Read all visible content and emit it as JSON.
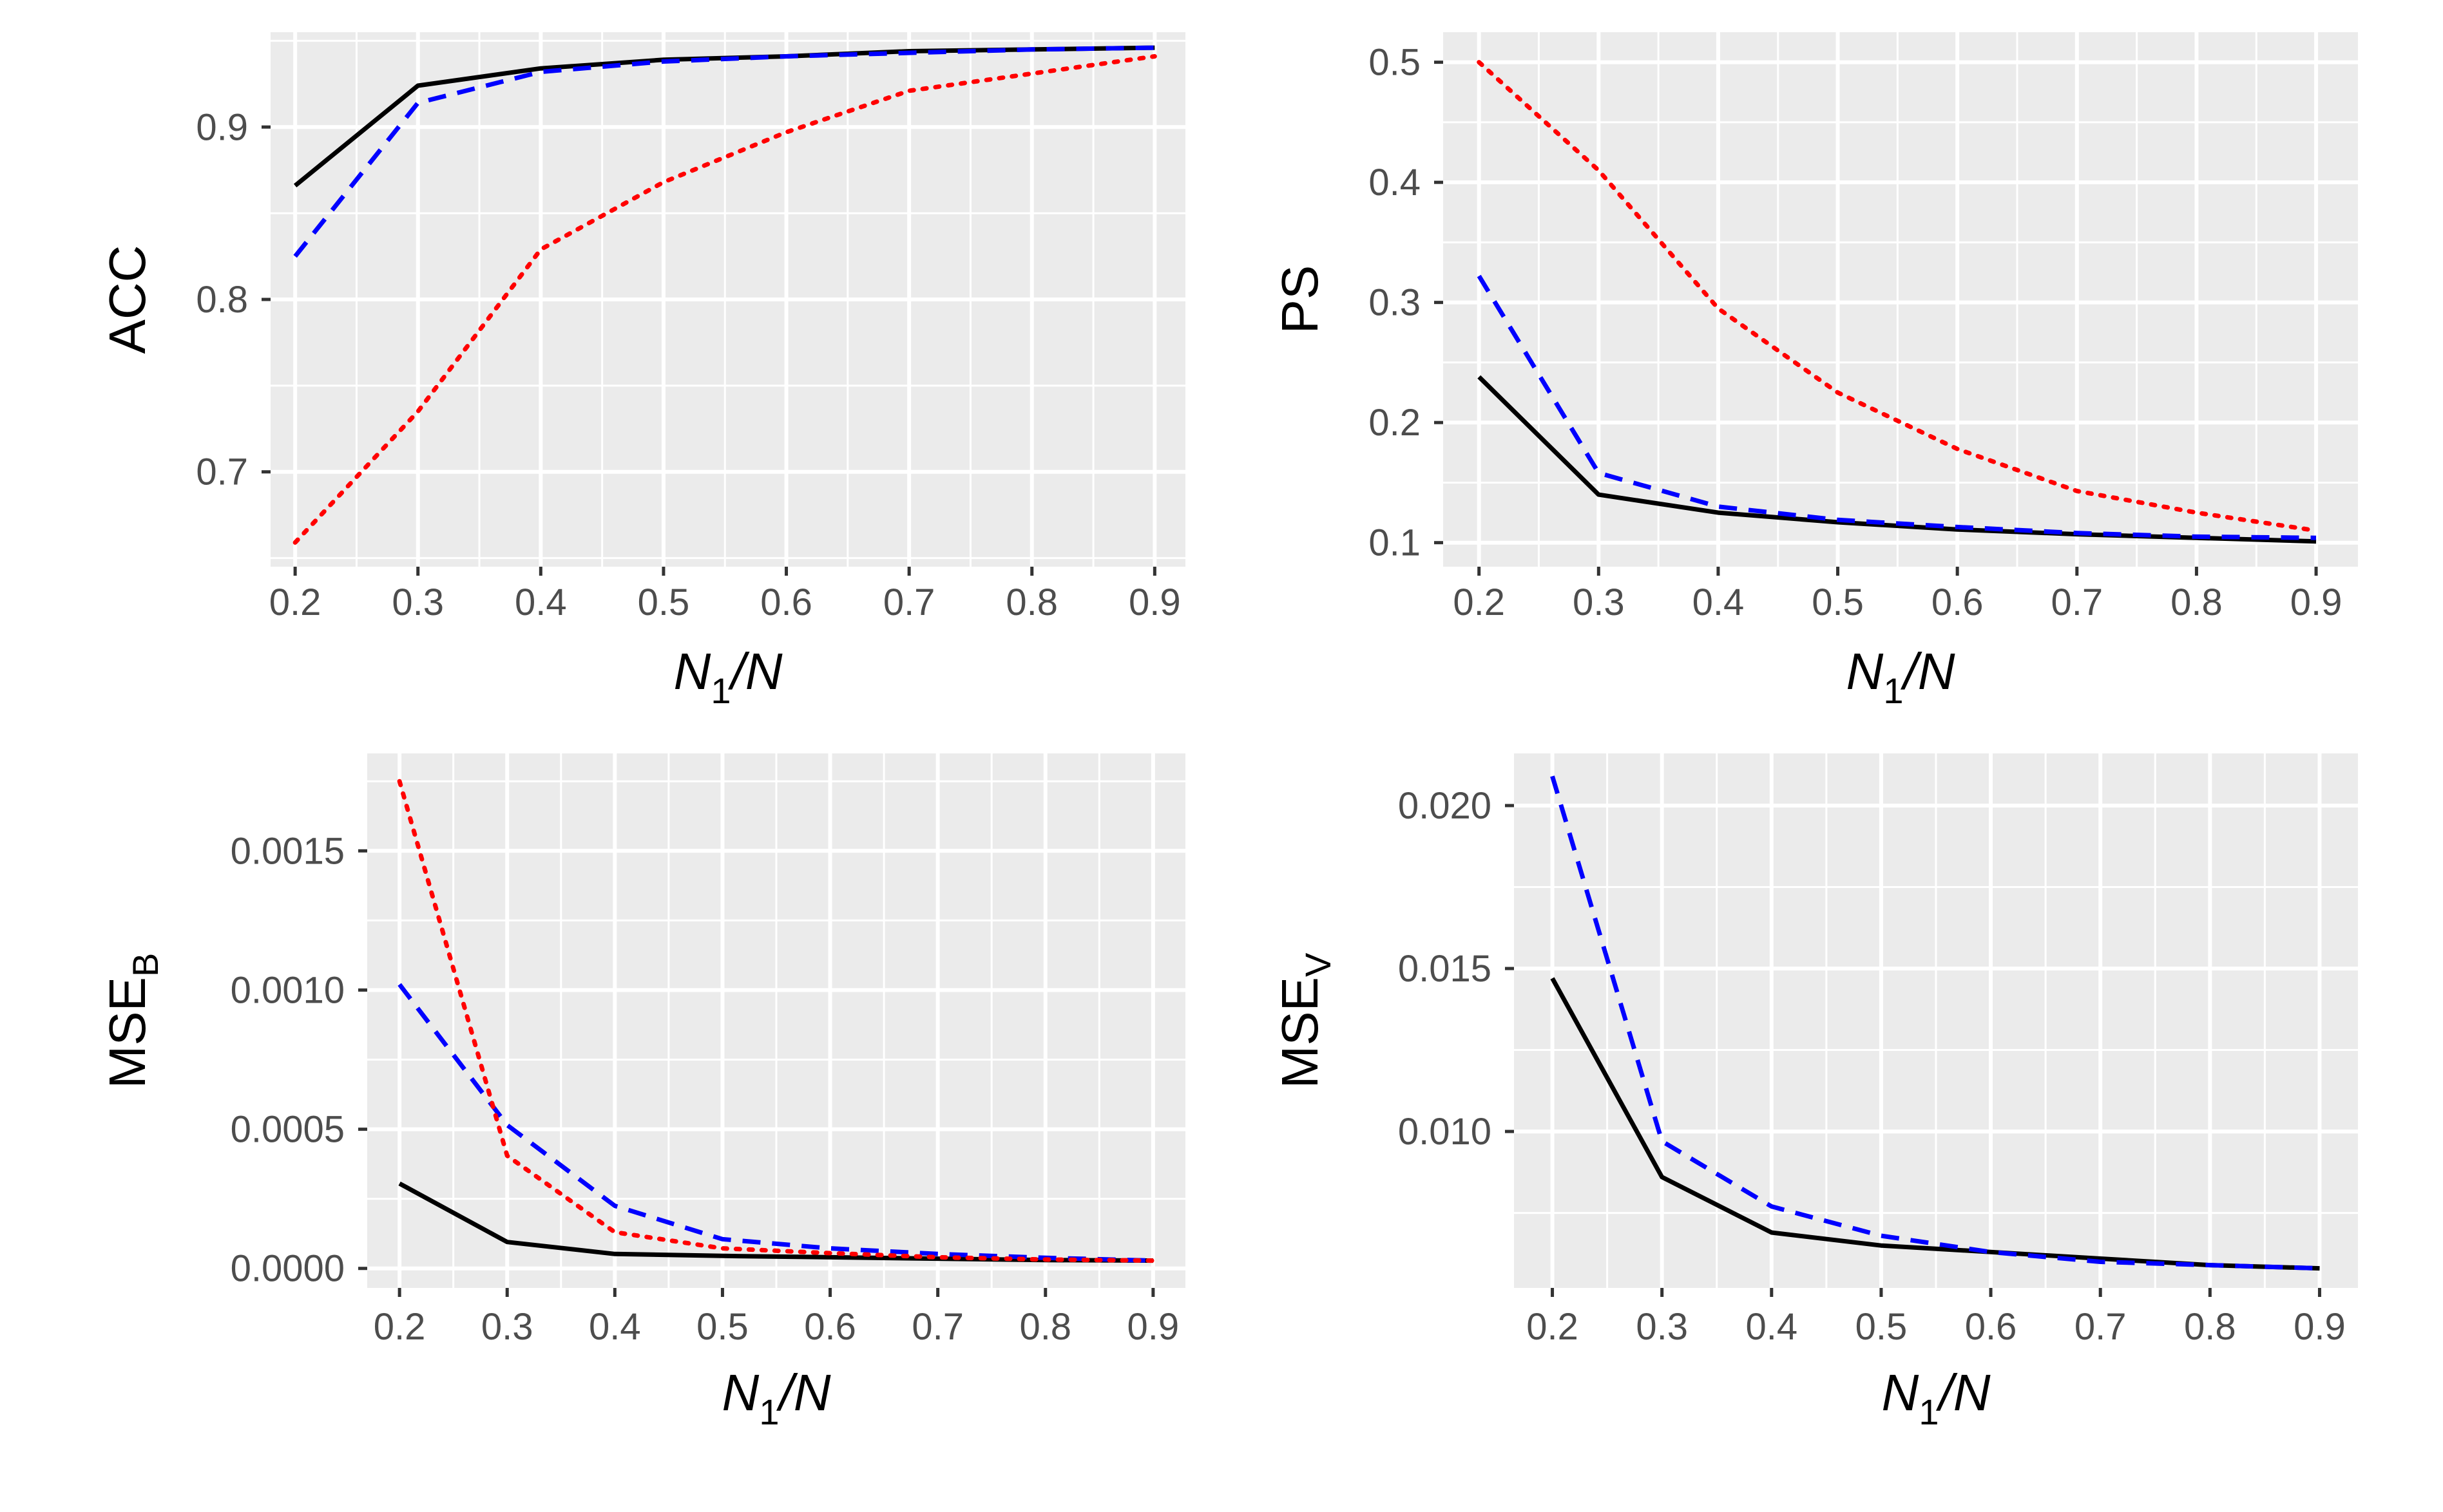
{
  "chart_data": [
    {
      "type": "line",
      "x": [
        0.2,
        0.3,
        0.4,
        0.5,
        0.6,
        0.7,
        0.8,
        0.9
      ],
      "x_ticks": [
        "0.2",
        "0.3",
        "0.4",
        "0.5",
        "0.6",
        "0.7",
        "0.8",
        "0.9"
      ],
      "xlabel": {
        "main": "N",
        "sub": "1",
        "tail": "/N"
      },
      "ylabel": {
        "main": "ACC",
        "sub": ""
      },
      "xlim": [
        0.18,
        0.925
      ],
      "ylim": [
        0.645,
        0.955
      ],
      "y_ticks": [
        0.7,
        0.8,
        0.9
      ],
      "y_tick_labels": [
        "0.7",
        "0.8",
        "0.9"
      ],
      "grid": true,
      "series": [
        {
          "style": "solid",
          "color": "#000000",
          "values": [
            0.866,
            0.924,
            0.934,
            0.939,
            0.941,
            0.944,
            0.945,
            0.946
          ]
        },
        {
          "style": "dashed",
          "color": "#0000ff",
          "values": [
            0.825,
            0.914,
            0.932,
            0.938,
            0.941,
            0.943,
            0.945,
            0.946
          ]
        },
        {
          "style": "dotted",
          "color": "#ff0000",
          "values": [
            0.659,
            0.735,
            0.829,
            0.868,
            0.897,
            0.921,
            0.931,
            0.941
          ]
        }
      ]
    },
    {
      "type": "line",
      "x": [
        0.2,
        0.3,
        0.4,
        0.5,
        0.6,
        0.7,
        0.8,
        0.9
      ],
      "x_ticks": [
        "0.2",
        "0.3",
        "0.4",
        "0.5",
        "0.6",
        "0.7",
        "0.8",
        "0.9"
      ],
      "xlabel": {
        "main": "N",
        "sub": "1",
        "tail": "/N"
      },
      "ylabel": {
        "main": "PS",
        "sub": ""
      },
      "xlim": [
        0.17,
        0.935
      ],
      "ylim": [
        0.08,
        0.525
      ],
      "y_ticks": [
        0.1,
        0.2,
        0.3,
        0.4,
        0.5
      ],
      "y_tick_labels": [
        "0.1",
        "0.2",
        "0.3",
        "0.4",
        "0.5"
      ],
      "grid": true,
      "series": [
        {
          "style": "solid",
          "color": "#000000",
          "values": [
            0.238,
            0.14,
            0.125,
            0.117,
            0.111,
            0.107,
            0.104,
            0.101
          ]
        },
        {
          "style": "dashed",
          "color": "#0000ff",
          "values": [
            0.322,
            0.158,
            0.13,
            0.119,
            0.113,
            0.108,
            0.105,
            0.104
          ]
        },
        {
          "style": "dotted",
          "color": "#ff0000",
          "values": [
            0.5,
            0.41,
            0.295,
            0.225,
            0.178,
            0.143,
            0.125,
            0.11
          ]
        }
      ]
    },
    {
      "type": "line",
      "x": [
        0.2,
        0.3,
        0.4,
        0.5,
        0.6,
        0.7,
        0.8,
        0.9
      ],
      "x_ticks": [
        "0.2",
        "0.3",
        "0.4",
        "0.5",
        "0.6",
        "0.7",
        "0.8",
        "0.9"
      ],
      "xlabel": {
        "main": "N",
        "sub": "1",
        "tail": "/N"
      },
      "ylabel": {
        "main": "MSE",
        "sub": "B"
      },
      "xlim": [
        0.17,
        0.93
      ],
      "ylim": [
        -7e-05,
        0.00185
      ],
      "y_ticks": [
        0.0,
        0.0005,
        0.001,
        0.0015
      ],
      "y_tick_labels": [
        "0.0000",
        "0.0005",
        "0.0010",
        "0.0015"
      ],
      "grid": true,
      "series": [
        {
          "style": "solid",
          "color": "#000000",
          "values": [
            0.000305,
            9.5e-05,
            5.2e-05,
            4.5e-05,
            4e-05,
            3.5e-05,
            3e-05,
            2.8e-05
          ]
        },
        {
          "style": "dashed",
          "color": "#0000ff",
          "values": [
            0.00102,
            0.000515,
            0.000225,
            0.000105,
            7.2e-05,
            5.2e-05,
            3.8e-05,
            2.8e-05
          ]
        },
        {
          "style": "dotted",
          "color": "#ff0000",
          "values": [
            0.00175,
            0.000405,
            0.00013,
            7.2e-05,
            5.5e-05,
            4e-05,
            3.2e-05,
            2.8e-05
          ]
        }
      ]
    },
    {
      "type": "line",
      "x": [
        0.2,
        0.3,
        0.4,
        0.5,
        0.6,
        0.7,
        0.8,
        0.9
      ],
      "x_ticks": [
        "0.2",
        "0.3",
        "0.4",
        "0.5",
        "0.6",
        "0.7",
        "0.8",
        "0.9"
      ],
      "xlabel": {
        "main": "N",
        "sub": "1",
        "tail": "/N"
      },
      "ylabel": {
        "main": "MSE",
        "sub": "V"
      },
      "xlim": [
        0.165,
        0.935
      ],
      "ylim": [
        0.0052,
        0.0216
      ],
      "y_ticks": [
        0.01,
        0.015,
        0.02
      ],
      "y_tick_labels": [
        "0.010",
        "0.015",
        "0.020"
      ],
      "grid": true,
      "series": [
        {
          "style": "solid",
          "color": "#000000",
          "values": [
            0.0147,
            0.0086,
            0.0069,
            0.0065,
            0.0063,
            0.0061,
            0.0059,
            0.0058
          ]
        },
        {
          "style": "dashed",
          "color": "#0000ff",
          "values": [
            0.0209,
            0.0097,
            0.0077,
            0.0068,
            0.0063,
            0.006,
            0.0059,
            0.0058
          ]
        }
      ]
    }
  ]
}
